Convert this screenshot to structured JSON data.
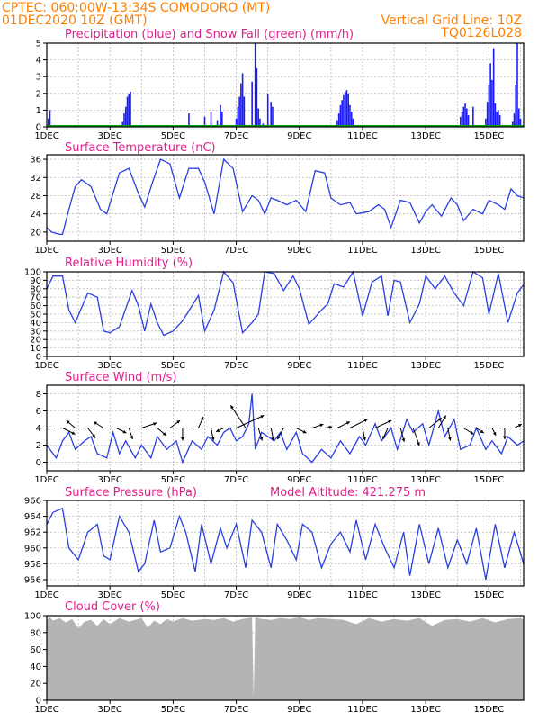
{
  "header": {
    "line1": "CPTEC:   060:00W-13:34S   COMODORO (MT)",
    "line2": "01DEC2020 10Z (GMT)",
    "grid_note": "Vertical Grid Line: 10Z",
    "code": "TQ0126L028"
  },
  "colors": {
    "header": "#ff7f00",
    "panel_title": "#e0208a",
    "precip": "#1a1aff",
    "snow": "#00a000",
    "line": "#2a3fe0",
    "cloud": "#b4b4b4",
    "wind_arrow": "#000000"
  },
  "x_ticks": [
    "1DEC",
    "3DEC",
    "5DEC",
    "7DEC",
    "9DEC",
    "11DEC",
    "13DEC",
    "15DEC"
  ],
  "chart_data": [
    {
      "id": "precip",
      "type": "bar",
      "title": "Precipitation (blue) and Snow Fall (green) (mm/h)",
      "xlabel": "",
      "ylabel": "",
      "xlim": [
        0,
        15.1
      ],
      "ylim": [
        0,
        5
      ],
      "yticks": [
        0,
        1,
        2,
        3,
        4,
        5
      ],
      "grid": true,
      "series": [
        {
          "name": "Precipitation",
          "x": [
            0.05,
            0.1,
            2.4,
            2.45,
            2.5,
            2.55,
            2.6,
            2.65,
            4.5,
            5.0,
            5.2,
            5.4,
            5.5,
            5.55,
            6.0,
            6.05,
            6.1,
            6.15,
            6.2,
            6.25,
            6.5,
            6.6,
            6.65,
            6.7,
            6.75,
            6.85,
            7.0,
            7.1,
            7.15,
            9.2,
            9.25,
            9.3,
            9.35,
            9.4,
            9.45,
            9.5,
            9.55,
            9.6,
            9.65,
            9.7,
            13.1,
            13.15,
            13.2,
            13.25,
            13.3,
            13.35,
            13.5,
            13.9,
            13.95,
            14.0,
            14.05,
            14.1,
            14.15,
            14.2,
            14.25,
            14.3,
            14.35,
            14.75,
            14.8,
            14.85,
            14.9,
            14.95,
            15.0
          ],
          "values": [
            0.5,
            1,
            0.3,
            0.8,
            1.2,
            1.8,
            2.0,
            2.1,
            0.8,
            0.6,
            0.9,
            0.4,
            1.3,
            0.9,
            0.5,
            1.2,
            1.8,
            2.6,
            3.2,
            1.8,
            2.7,
            5,
            3.5,
            1.1,
            0.5,
            0.2,
            2.0,
            1.5,
            1.2,
            0.4,
            0.8,
            1.3,
            1.6,
            1.9,
            2.1,
            2.2,
            2.0,
            1.3,
            0.9,
            0.5,
            0.6,
            0.9,
            1.2,
            1.4,
            1.1,
            0.7,
            1.2,
            0.5,
            1.5,
            2.5,
            3.8,
            2.8,
            4.7,
            1.4,
            0.9,
            1.0,
            0.7,
            0.3,
            0.8,
            2.5,
            5,
            1.1,
            0.5
          ]
        },
        {
          "name": "Snow Fall",
          "x": [],
          "values": []
        }
      ]
    },
    {
      "id": "temp",
      "type": "line",
      "title": "Surface Temperature (nC)",
      "xlabel": "",
      "ylabel": "",
      "xlim": [
        0,
        15.1
      ],
      "ylim": [
        18,
        37
      ],
      "yticks": [
        20,
        24,
        28,
        32,
        36
      ],
      "grid": true,
      "series": [
        {
          "name": "Temperature",
          "x": [
            0,
            0.15,
            0.4,
            0.5,
            0.7,
            0.9,
            1.1,
            1.4,
            1.7,
            1.9,
            2.3,
            2.6,
            2.9,
            3.1,
            3.35,
            3.6,
            3.9,
            4.2,
            4.5,
            4.8,
            5.0,
            5.3,
            5.6,
            5.9,
            6.2,
            6.5,
            6.7,
            6.9,
            7.1,
            7.3,
            7.6,
            7.9,
            8.2,
            8.5,
            8.8,
            9.0,
            9.3,
            9.6,
            9.8,
            10.2,
            10.5,
            10.7,
            10.9,
            11.2,
            11.5,
            11.8,
            12.0,
            12.2,
            12.5,
            12.8,
            13.0,
            13.2,
            13.5,
            13.8,
            14.0,
            14.3,
            14.5,
            14.7,
            14.9,
            15.1
          ],
          "values": [
            21,
            20,
            19.5,
            19.5,
            25,
            30,
            31.5,
            30,
            25,
            24,
            33,
            34,
            28.5,
            25.5,
            31,
            36,
            35,
            27.5,
            34,
            34,
            31,
            24,
            36,
            34,
            24.5,
            28,
            27,
            24,
            27.5,
            27,
            26,
            27,
            24.5,
            33.5,
            33,
            27.5,
            26,
            26.5,
            24,
            24.5,
            26,
            25,
            21,
            27,
            26.5,
            22,
            24.5,
            26,
            23.5,
            27.5,
            26,
            22.5,
            25,
            24,
            27,
            26,
            25,
            29.5,
            28,
            27.5
          ]
        }
      ]
    },
    {
      "id": "rh",
      "type": "line",
      "title": "Relative Humidity (%)",
      "xlabel": "",
      "ylabel": "",
      "xlim": [
        0,
        15.1
      ],
      "ylim": [
        0,
        100
      ],
      "yticks": [
        0,
        10,
        20,
        30,
        40,
        50,
        60,
        70,
        80,
        90,
        100
      ],
      "grid": true,
      "series": [
        {
          "name": "Relative Humidity",
          "x": [
            0,
            0.2,
            0.5,
            0.7,
            0.9,
            1.3,
            1.6,
            1.8,
            2.0,
            2.3,
            2.7,
            2.9,
            3.1,
            3.3,
            3.5,
            3.7,
            4.0,
            4.3,
            4.6,
            4.8,
            5.0,
            5.3,
            5.6,
            5.9,
            6.2,
            6.5,
            6.7,
            6.9,
            7.2,
            7.5,
            7.8,
            8.0,
            8.3,
            8.7,
            8.9,
            9.1,
            9.4,
            9.7,
            10.0,
            10.3,
            10.6,
            10.8,
            11.0,
            11.2,
            11.5,
            11.8,
            12.0,
            12.3,
            12.6,
            12.9,
            13.2,
            13.5,
            13.8,
            14.0,
            14.3,
            14.6,
            14.9,
            15.1
          ],
          "values": [
            80,
            95,
            95,
            55,
            40,
            75,
            70,
            30,
            28,
            35,
            78,
            60,
            30,
            62,
            40,
            25,
            30,
            42,
            60,
            72,
            30,
            55,
            100,
            87,
            28,
            40,
            50,
            100,
            98,
            78,
            95,
            80,
            38,
            55,
            62,
            86,
            82,
            100,
            48,
            88,
            95,
            48,
            90,
            88,
            40,
            62,
            95,
            80,
            95,
            75,
            60,
            100,
            93,
            50,
            98,
            40,
            75,
            85
          ]
        }
      ]
    },
    {
      "id": "wind",
      "type": "line",
      "title": "Surface Wind (m/s)",
      "xlabel": "",
      "ylabel": "",
      "xlim": [
        0,
        15.1
      ],
      "ylim": [
        -1,
        9
      ],
      "yticks": [
        0,
        2,
        4,
        6,
        8
      ],
      "grid": true,
      "series": [
        {
          "name": "Wind speed",
          "x": [
            0,
            0.3,
            0.5,
            0.7,
            0.9,
            1.2,
            1.4,
            1.6,
            1.9,
            2.1,
            2.3,
            2.5,
            2.8,
            3.0,
            3.3,
            3.5,
            3.8,
            4.1,
            4.3,
            4.6,
            4.9,
            5.1,
            5.4,
            5.6,
            5.8,
            6.0,
            6.2,
            6.4,
            6.5,
            6.6,
            6.8,
            7.0,
            7.2,
            7.4,
            7.6,
            7.9,
            8.1,
            8.4,
            8.7,
            9.0,
            9.3,
            9.6,
            9.9,
            10.1,
            10.4,
            10.6,
            10.9,
            11.1,
            11.4,
            11.6,
            11.9,
            12.1,
            12.4,
            12.6,
            12.9,
            13.1,
            13.4,
            13.6,
            13.9,
            14.1,
            14.4,
            14.6,
            14.9,
            15.1
          ],
          "values": [
            2,
            0.5,
            2.5,
            3.5,
            1.5,
            2.5,
            3,
            1,
            0.5,
            3.5,
            1,
            2.5,
            0.5,
            2,
            0.5,
            3,
            1.5,
            2.5,
            0,
            2.5,
            1.5,
            3,
            2,
            3.5,
            4,
            2.5,
            3,
            4.5,
            8,
            1.5,
            3.5,
            3,
            2.5,
            3.5,
            1.5,
            3.5,
            1,
            0,
            1.5,
            0.5,
            2.5,
            1,
            3,
            2,
            4.5,
            2.5,
            4,
            1.5,
            5,
            3.5,
            4.5,
            2,
            6,
            3,
            5,
            1.5,
            2,
            4,
            1.5,
            2.5,
            1,
            3,
            2,
            2.5
          ]
        }
      ],
      "vectors": [
        {
          "x": 0.5,
          "u": 1.0,
          "v": -0.5
        },
        {
          "x": 0.9,
          "u": -0.7,
          "v": 0.6
        },
        {
          "x": 1.3,
          "u": 0.6,
          "v": -0.8
        },
        {
          "x": 1.8,
          "u": -0.8,
          "v": 0.5
        },
        {
          "x": 2.2,
          "u": 0.8,
          "v": -0.4
        },
        {
          "x": 2.6,
          "u": 0.3,
          "v": -0.9
        },
        {
          "x": 3.0,
          "u": 1.2,
          "v": 0.4
        },
        {
          "x": 3.5,
          "u": 0.7,
          "v": -0.6
        },
        {
          "x": 3.9,
          "u": 0.8,
          "v": 0.6
        },
        {
          "x": 4.3,
          "u": 0,
          "v": -1.0
        },
        {
          "x": 4.8,
          "u": 0.4,
          "v": 0.9
        },
        {
          "x": 5.2,
          "u": 0.2,
          "v": -1.0
        },
        {
          "x": 5.6,
          "u": -0.6,
          "v": -0.3
        },
        {
          "x": 6.0,
          "u": 2.2,
          "v": 1.0
        },
        {
          "x": 6.3,
          "u": -1.2,
          "v": 1.8
        },
        {
          "x": 6.7,
          "u": 0.3,
          "v": -1.0
        },
        {
          "x": 7.1,
          "u": 0.2,
          "v": -1.0
        },
        {
          "x": 7.5,
          "u": -0.5,
          "v": -0.9
        },
        {
          "x": 7.9,
          "u": 0.8,
          "v": -0.4
        },
        {
          "x": 8.4,
          "u": 0.9,
          "v": 0.3
        },
        {
          "x": 8.8,
          "u": 0.6,
          "v": 0.1
        },
        {
          "x": 9.2,
          "u": 1.0,
          "v": 0.5
        },
        {
          "x": 9.6,
          "u": 1.4,
          "v": 0.7
        },
        {
          "x": 10.0,
          "u": 0.2,
          "v": -1.0
        },
        {
          "x": 10.4,
          "u": 1.3,
          "v": 0.6
        },
        {
          "x": 10.8,
          "u": -0.4,
          "v": -0.9
        },
        {
          "x": 11.2,
          "u": 0.3,
          "v": -1.1
        },
        {
          "x": 11.6,
          "u": 0.5,
          "v": -1.4
        },
        {
          "x": 12.1,
          "u": 1.0,
          "v": 0.8
        },
        {
          "x": 12.4,
          "u": 0.6,
          "v": 1.0
        },
        {
          "x": 12.7,
          "u": 0.2,
          "v": -1.0
        },
        {
          "x": 13.2,
          "u": 0.8,
          "v": -0.5
        },
        {
          "x": 13.6,
          "u": 0.6,
          "v": -0.4
        },
        {
          "x": 14.1,
          "u": 0.3,
          "v": -0.6
        },
        {
          "x": 14.5,
          "u": 0,
          "v": -0.9
        },
        {
          "x": 14.8,
          "u": 0.6,
          "v": 0.3
        }
      ]
    },
    {
      "id": "press",
      "type": "line",
      "title": "Surface Pressure (hPa)",
      "subtitle": "Model Altitude: 421.275 m",
      "xlabel": "",
      "ylabel": "",
      "xlim": [
        0,
        15.1
      ],
      "ylim": [
        955.2,
        966
      ],
      "yticks": [
        956,
        958,
        960,
        962,
        964,
        966
      ],
      "grid": true,
      "series": [
        {
          "name": "Pressure",
          "x": [
            0,
            0.2,
            0.5,
            0.7,
            1.0,
            1.3,
            1.6,
            1.8,
            2.0,
            2.3,
            2.6,
            2.9,
            3.1,
            3.4,
            3.6,
            3.9,
            4.2,
            4.4,
            4.7,
            4.9,
            5.2,
            5.5,
            5.7,
            6.0,
            6.3,
            6.5,
            6.8,
            7.1,
            7.3,
            7.6,
            7.9,
            8.1,
            8.4,
            8.7,
            9.0,
            9.3,
            9.6,
            9.8,
            10.1,
            10.4,
            10.7,
            11.0,
            11.3,
            11.5,
            11.8,
            12.1,
            12.4,
            12.7,
            13.0,
            13.3,
            13.6,
            13.9,
            14.2,
            14.5,
            14.8,
            15.1
          ],
          "values": [
            963,
            964.5,
            965,
            960,
            958.5,
            962,
            963,
            959,
            958.5,
            964,
            962,
            957,
            958,
            963.5,
            959.5,
            960,
            964,
            962,
            957,
            963,
            958,
            962.5,
            960,
            963,
            957.5,
            963.5,
            962,
            957.5,
            963,
            961,
            958.5,
            963,
            962,
            957.5,
            960.5,
            962,
            959.5,
            963.5,
            958.5,
            963,
            960,
            957.5,
            962,
            956.5,
            963,
            958,
            962.5,
            957.5,
            961,
            958,
            962.5,
            956,
            963,
            957.5,
            962,
            958
          ]
        }
      ]
    },
    {
      "id": "cloud",
      "type": "area",
      "title": "Cloud Cover (%)",
      "xlabel": "",
      "ylabel": "",
      "xlim": [
        0,
        15.1
      ],
      "ylim": [
        0,
        100
      ],
      "yticks": [
        0,
        20,
        40,
        60,
        80,
        100
      ],
      "grid": true,
      "series": [
        {
          "name": "Cloud Cover",
          "x": [
            0,
            0.1,
            0.2,
            0.4,
            0.6,
            0.8,
            1.0,
            1.2,
            1.4,
            1.6,
            1.8,
            2.0,
            2.3,
            2.6,
            2.8,
            3.0,
            3.2,
            3.4,
            3.6,
            3.8,
            4.0,
            4.3,
            4.6,
            5.0,
            5.3,
            5.6,
            5.9,
            6.2,
            6.4,
            6.5,
            6.55,
            6.6,
            6.8,
            7.1,
            7.4,
            7.7,
            8.0,
            8.3,
            8.6,
            9.0,
            9.4,
            9.8,
            10.2,
            10.6,
            11.0,
            11.4,
            11.8,
            12.2,
            12.6,
            13.0,
            13.4,
            13.8,
            14.2,
            14.6,
            15.0,
            15.1
          ],
          "values": [
            95,
            98,
            94,
            97,
            92,
            96,
            85,
            93,
            95,
            88,
            96,
            90,
            97,
            93,
            95,
            97,
            86,
            94,
            90,
            96,
            93,
            97,
            94,
            96,
            95,
            97,
            93,
            96,
            97,
            98,
            2,
            98,
            96,
            95,
            97,
            96,
            98,
            95,
            97,
            96,
            95,
            90,
            97,
            93,
            96,
            94,
            97,
            88,
            95,
            96,
            93,
            97,
            92,
            96,
            97,
            95
          ]
        }
      ]
    }
  ]
}
